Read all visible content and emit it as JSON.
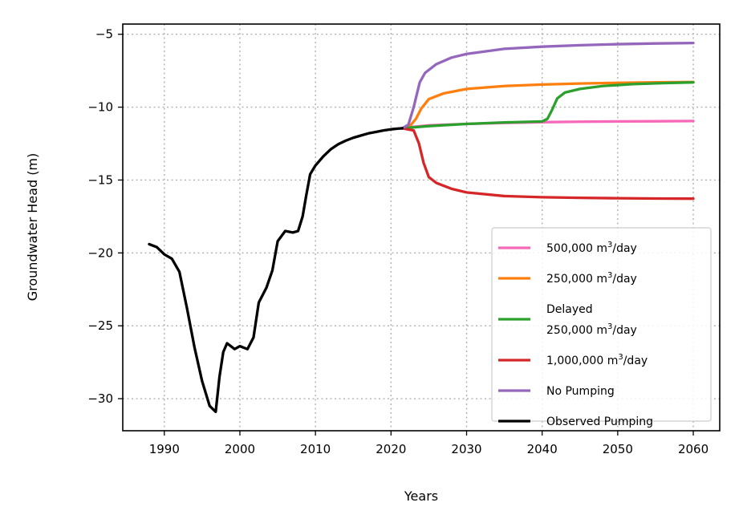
{
  "chart_data": {
    "type": "line",
    "xlabel": "Years",
    "ylabel": "Groundwater Head (m)",
    "xlim": [
      1984.5,
      2063.5
    ],
    "ylim": [
      -32.2,
      -4.3
    ],
    "xticks": [
      1990,
      2000,
      2010,
      2020,
      2030,
      2040,
      2050,
      2060
    ],
    "yticks": [
      -5,
      -10,
      -15,
      -20,
      -25,
      -30
    ],
    "xtick_labels": [
      "1990",
      "2000",
      "2010",
      "2020",
      "2030",
      "2040",
      "2050",
      "2060"
    ],
    "ytick_labels": [
      "−5",
      "−10",
      "−15",
      "−20",
      "−25",
      "−30"
    ],
    "grid": true,
    "legend_position": "lower-right",
    "series": [
      {
        "key": "s500k",
        "name": "500,000 m3/day",
        "legend_lines": [
          {
            "text": "500,000 m",
            "sup": "3",
            "after": "/day"
          }
        ],
        "color": "#f768b9",
        "x": [
          2021.5,
          2023,
          2025,
          2030,
          2035,
          2040,
          2045,
          2050,
          2055,
          2060
        ],
        "y": [
          -11.45,
          -11.35,
          -11.25,
          -11.15,
          -11.08,
          -11.03,
          -11.0,
          -10.98,
          -10.97,
          -10.95
        ]
      },
      {
        "key": "s250k",
        "name": "250,000 m3/day",
        "legend_lines": [
          {
            "text": "250,000 m",
            "sup": "3",
            "after": "/day"
          }
        ],
        "color": "#ff7f0e",
        "x": [
          2021.5,
          2022.5,
          2023.3,
          2024,
          2025,
          2027,
          2030,
          2035,
          2040,
          2045,
          2050,
          2055,
          2060
        ],
        "y": [
          -11.45,
          -11.3,
          -10.8,
          -10.1,
          -9.45,
          -9.05,
          -8.75,
          -8.55,
          -8.45,
          -8.38,
          -8.33,
          -8.3,
          -8.28
        ]
      },
      {
        "key": "delayed",
        "name": "Delayed 250,000 m3/day",
        "legend_lines": [
          {
            "text": "Delayed"
          },
          {
            "text": "250,000 m",
            "sup": "3",
            "after": "/day"
          }
        ],
        "color": "#2ca02c",
        "x": [
          2021.5,
          2025,
          2030,
          2035,
          2040,
          2040.7,
          2041.3,
          2042,
          2043,
          2045,
          2048,
          2052,
          2056,
          2060
        ],
        "y": [
          -11.45,
          -11.3,
          -11.15,
          -11.05,
          -10.98,
          -10.8,
          -10.2,
          -9.4,
          -9.0,
          -8.75,
          -8.55,
          -8.42,
          -8.35,
          -8.3
        ]
      },
      {
        "key": "s1m",
        "name": "1,000,000 m3/day",
        "legend_lines": [
          {
            "text": "1,000,000 m",
            "sup": "3",
            "after": "/day"
          }
        ],
        "color": "#d62728",
        "x": [
          2021.5,
          2023,
          2023.7,
          2024.3,
          2025,
          2026,
          2028,
          2030,
          2035,
          2040,
          2045,
          2050,
          2055,
          2060
        ],
        "y": [
          -11.45,
          -11.6,
          -12.5,
          -13.8,
          -14.8,
          -15.2,
          -15.6,
          -15.85,
          -16.1,
          -16.18,
          -16.22,
          -16.25,
          -16.27,
          -16.28
        ]
      },
      {
        "key": "nopump",
        "name": "No Pumping",
        "legend_lines": [
          {
            "text": "No Pumping"
          }
        ],
        "color": "#9467bd",
        "x": [
          2021.5,
          2022.3,
          2023,
          2023.8,
          2024.5,
          2026,
          2028,
          2030,
          2035,
          2040,
          2045,
          2050,
          2055,
          2060
        ],
        "y": [
          -11.45,
          -11.2,
          -10.0,
          -8.3,
          -7.65,
          -7.05,
          -6.6,
          -6.35,
          -6.0,
          -5.85,
          -5.75,
          -5.68,
          -5.63,
          -5.6
        ]
      },
      {
        "key": "observed",
        "name": "Observed Pumping",
        "legend_lines": [
          {
            "text": "Observed Pumping"
          }
        ],
        "color": "#000000",
        "x": [
          1988,
          1989,
          1990,
          1991,
          1992,
          1993,
          1994,
          1995,
          1996,
          1996.8,
          1997.3,
          1997.8,
          1998.3,
          1998.8,
          1999.3,
          2000,
          2001,
          2001.8,
          2002.5,
          2003.5,
          2004.3,
          2005,
          2006,
          2007,
          2007.7,
          2008.3,
          2008.8,
          2009.3,
          2010,
          2011,
          2012,
          2013,
          2014,
          2015,
          2016,
          2017,
          2018,
          2019,
          2020,
          2021,
          2021.5
        ],
        "y": [
          -19.4,
          -19.6,
          -20.1,
          -20.4,
          -21.3,
          -23.8,
          -26.5,
          -28.8,
          -30.5,
          -30.9,
          -28.5,
          -26.8,
          -26.2,
          -26.4,
          -26.6,
          -26.4,
          -26.6,
          -25.8,
          -23.4,
          -22.4,
          -21.2,
          -19.2,
          -18.5,
          -18.6,
          -18.5,
          -17.5,
          -16.0,
          -14.6,
          -14.0,
          -13.4,
          -12.9,
          -12.55,
          -12.3,
          -12.1,
          -11.95,
          -11.8,
          -11.7,
          -11.6,
          -11.52,
          -11.47,
          -11.45
        ]
      }
    ]
  }
}
